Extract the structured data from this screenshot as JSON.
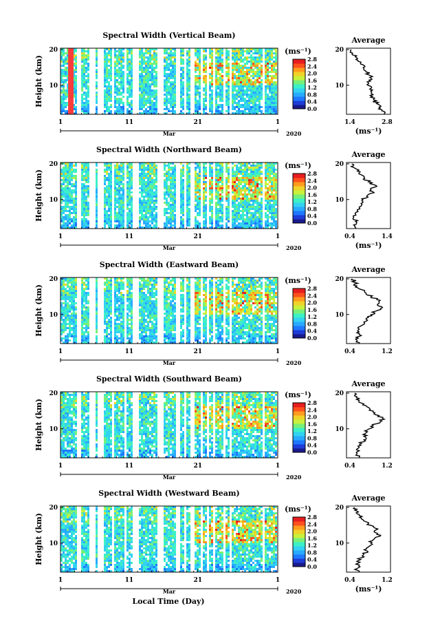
{
  "colorbar": {
    "unit": "(ms⁻¹)",
    "ticks": [
      "0.0",
      "0.4",
      "0.8",
      "1.2",
      "1.6",
      "2.0",
      "2.4",
      "2.8"
    ],
    "colors": [
      "#1a1a8c",
      "#1e3cd7",
      "#1e78ff",
      "#28aaff",
      "#32d2f0",
      "#3cf0c8",
      "#78f078",
      "#c8f03c",
      "#f0d228",
      "#ff9b1e",
      "#ff501e",
      "#e61e1e"
    ]
  },
  "xaxis": {
    "ticks": [
      "1",
      "11",
      "21",
      "1"
    ],
    "month": "Mar",
    "year": "2020",
    "label": "Local Time (Day)"
  },
  "chart_data": [
    {
      "type": "heatmap",
      "title": "Spectral Width (Vertical Beam)",
      "ylabel": "Height (km)",
      "yticks": [
        "20",
        "10"
      ],
      "ylim": [
        2,
        20
      ],
      "avg_title": "Average",
      "avg_xticks": [
        "1.4",
        "2.8"
      ],
      "avg_xlim": [
        1.4,
        2.8
      ],
      "avg_xlabel": "(ms⁻¹)",
      "avg_profile": {
        "height": [
          2,
          3,
          4,
          5,
          6,
          7,
          8,
          9,
          10,
          11,
          12,
          13,
          14,
          15,
          16,
          17,
          18,
          19,
          20
        ],
        "value": [
          2.7,
          2.6,
          2.5,
          2.4,
          2.3,
          2.25,
          2.2,
          2.15,
          2.1,
          2.05,
          2.2,
          2.1,
          2.0,
          1.9,
          1.8,
          1.7,
          1.6,
          1.5,
          1.45
        ]
      }
    },
    {
      "type": "heatmap",
      "title": "Spectral Width (Northward Beam)",
      "ylabel": "Height (km)",
      "yticks": [
        "20",
        "10"
      ],
      "ylim": [
        2,
        20
      ],
      "avg_title": "Average",
      "avg_xticks": [
        "0.4",
        "1.4"
      ],
      "avg_xlim": [
        0.4,
        1.4
      ],
      "avg_xlabel": "(ms⁻¹)",
      "avg_profile": {
        "height": [
          2,
          3,
          4,
          5,
          6,
          7,
          8,
          9,
          10,
          11,
          12,
          13,
          14,
          15,
          16,
          17,
          18,
          19,
          20
        ],
        "value": [
          0.55,
          0.5,
          0.55,
          0.5,
          0.55,
          0.6,
          0.65,
          0.7,
          0.75,
          0.85,
          1.05,
          0.95,
          1.1,
          0.9,
          0.8,
          0.7,
          0.6,
          0.5,
          0.45
        ]
      }
    },
    {
      "type": "heatmap",
      "title": "Spectral Width (Eastward Beam)",
      "ylabel": "Height (km)",
      "yticks": [
        "20",
        "10"
      ],
      "ylim": [
        2,
        20
      ],
      "avg_title": "Average",
      "avg_xticks": [
        "0.4",
        "1.2"
      ],
      "avg_xlim": [
        0.4,
        1.2
      ],
      "avg_xlabel": "",
      "avg_profile": {
        "height": [
          2,
          3,
          4,
          5,
          6,
          7,
          8,
          9,
          10,
          11,
          12,
          13,
          14,
          15,
          16,
          17,
          18,
          19,
          20
        ],
        "value": [
          0.6,
          0.55,
          0.6,
          0.55,
          0.6,
          0.65,
          0.7,
          0.75,
          0.85,
          0.95,
          1.1,
          1.0,
          1.05,
          0.85,
          0.75,
          0.65,
          0.55,
          0.5,
          0.45
        ]
      }
    },
    {
      "type": "heatmap",
      "title": "Spectral Width (Southward Beam)",
      "ylabel": "Height (km)",
      "yticks": [
        "20",
        "10"
      ],
      "ylim": [
        2,
        20
      ],
      "avg_title": "Average",
      "avg_xticks": [
        "0.4",
        "1.2"
      ],
      "avg_xlim": [
        0.4,
        1.2
      ],
      "avg_xlabel": "",
      "avg_profile": {
        "height": [
          2,
          3,
          4,
          5,
          6,
          7,
          8,
          9,
          10,
          11,
          12,
          13,
          14,
          15,
          16,
          17,
          18,
          19,
          20
        ],
        "value": [
          0.6,
          0.55,
          0.6,
          0.6,
          0.65,
          0.7,
          0.7,
          0.75,
          0.8,
          0.9,
          1.05,
          1.1,
          0.95,
          0.9,
          0.8,
          0.7,
          0.6,
          0.55,
          0.5
        ]
      }
    },
    {
      "type": "heatmap",
      "title": "Spectral Width (Westward Beam)",
      "ylabel": "Height (km)",
      "yticks": [
        "20",
        "10"
      ],
      "ylim": [
        2,
        20
      ],
      "avg_title": "Average",
      "avg_xticks": [
        "0.4",
        "1.2"
      ],
      "avg_xlim": [
        0.4,
        1.2
      ],
      "avg_xlabel": "(ms⁻¹)",
      "avg_profile": {
        "height": [
          2,
          3,
          4,
          5,
          6,
          7,
          8,
          9,
          10,
          11,
          12,
          13,
          14,
          15,
          16,
          17,
          18,
          19,
          20
        ],
        "value": [
          0.6,
          0.55,
          0.6,
          0.55,
          0.65,
          0.7,
          0.75,
          0.8,
          0.85,
          0.9,
          1.05,
          0.95,
          1.0,
          0.85,
          0.75,
          0.65,
          0.6,
          0.55,
          0.5
        ]
      }
    }
  ]
}
